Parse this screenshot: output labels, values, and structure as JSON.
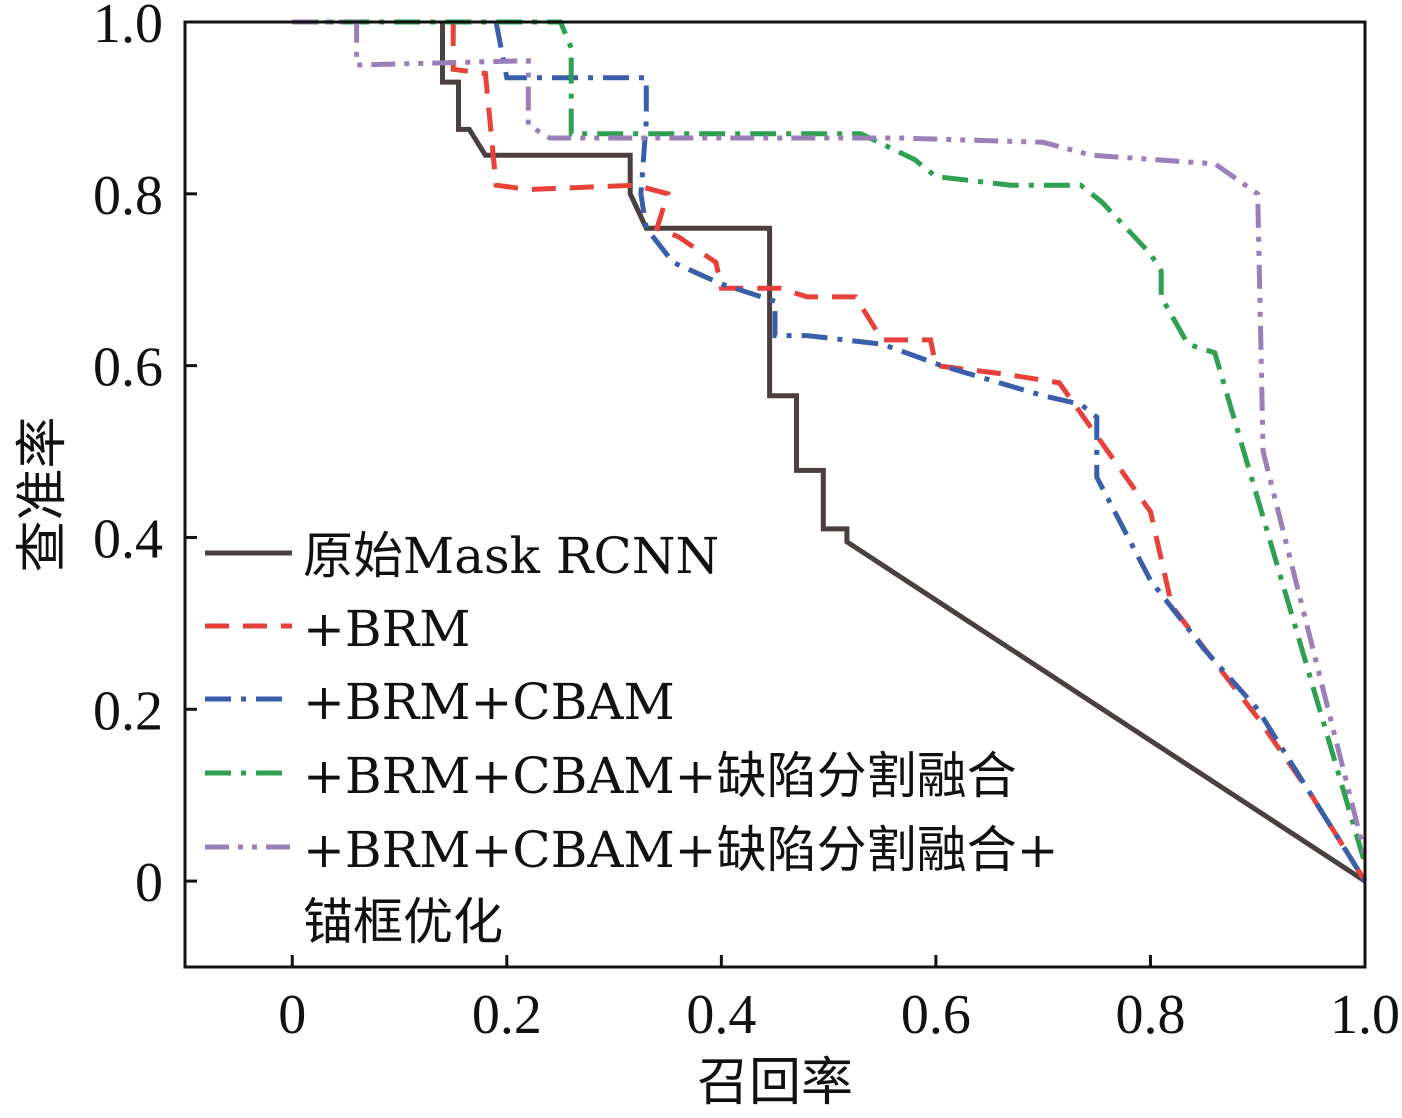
{
  "chart_data": {
    "type": "line",
    "xlabel": "召回率",
    "ylabel": "查准率",
    "xlim": [
      -0.1,
      1.0
    ],
    "ylim": [
      -0.1,
      1.0
    ],
    "xticks": [
      0,
      0.2,
      0.4,
      0.6,
      0.8,
      1.0
    ],
    "yticks": [
      0,
      0.2,
      0.4,
      0.6,
      0.8,
      1.0
    ],
    "xtick_labels": [
      "0",
      "0.2",
      "0.4",
      "0.6",
      "0.8",
      "1.0"
    ],
    "ytick_labels": [
      "0",
      "0.2",
      "0.4",
      "0.6",
      "0.8",
      "1.0"
    ],
    "grid": false,
    "legend_position": "lower-left",
    "series": [
      {
        "name": "原始Mask RCNN",
        "color": "#4a4040",
        "dash": "solid",
        "points": [
          [
            0.14,
            1.0
          ],
          [
            0.14,
            0.93
          ],
          [
            0.155,
            0.93
          ],
          [
            0.155,
            0.875
          ],
          [
            0.165,
            0.875
          ],
          [
            0.18,
            0.845
          ],
          [
            0.315,
            0.845
          ],
          [
            0.315,
            0.8
          ],
          [
            0.33,
            0.76
          ],
          [
            0.445,
            0.76
          ],
          [
            0.445,
            0.565
          ],
          [
            0.47,
            0.565
          ],
          [
            0.47,
            0.478
          ],
          [
            0.495,
            0.478
          ],
          [
            0.495,
            0.41
          ],
          [
            0.517,
            0.41
          ],
          [
            0.517,
            0.395
          ],
          [
            1.0,
            0.0
          ]
        ]
      },
      {
        "name": "+BRM",
        "color": "#e8413c",
        "dash": "dash",
        "points": [
          [
            0.15,
            1.0
          ],
          [
            0.15,
            0.945
          ],
          [
            0.18,
            0.94
          ],
          [
            0.19,
            0.81
          ],
          [
            0.22,
            0.805
          ],
          [
            0.32,
            0.81
          ],
          [
            0.35,
            0.8
          ],
          [
            0.34,
            0.76
          ],
          [
            0.36,
            0.75
          ],
          [
            0.395,
            0.72
          ],
          [
            0.4,
            0.69
          ],
          [
            0.455,
            0.69
          ],
          [
            0.48,
            0.68
          ],
          [
            0.525,
            0.68
          ],
          [
            0.55,
            0.63
          ],
          [
            0.595,
            0.63
          ],
          [
            0.6,
            0.6
          ],
          [
            0.665,
            0.59
          ],
          [
            0.715,
            0.58
          ],
          [
            0.8,
            0.43
          ],
          [
            0.82,
            0.32
          ],
          [
            0.9,
            0.19
          ],
          [
            0.95,
            0.1
          ],
          [
            1.0,
            0.0
          ]
        ]
      },
      {
        "name": "+BRM+CBAM",
        "color": "#3a5faa",
        "dash": "dashdot",
        "points": [
          [
            0.19,
            1.0
          ],
          [
            0.2,
            0.935
          ],
          [
            0.33,
            0.935
          ],
          [
            0.33,
            0.885
          ],
          [
            0.325,
            0.8
          ],
          [
            0.33,
            0.76
          ],
          [
            0.355,
            0.72
          ],
          [
            0.4,
            0.695
          ],
          [
            0.45,
            0.675
          ],
          [
            0.45,
            0.635
          ],
          [
            0.48,
            0.635
          ],
          [
            0.55,
            0.625
          ],
          [
            0.605,
            0.6
          ],
          [
            0.7,
            0.565
          ],
          [
            0.735,
            0.555
          ],
          [
            0.75,
            0.54
          ],
          [
            0.75,
            0.47
          ],
          [
            0.8,
            0.35
          ],
          [
            0.85,
            0.27
          ],
          [
            0.9,
            0.2
          ],
          [
            1.0,
            0.0
          ]
        ]
      },
      {
        "name": "+BRM+CBAM+缺陷分割融合",
        "color": "#2ea050",
        "dash": "dashdot",
        "points": [
          [
            0.0,
            1.0
          ],
          [
            0.25,
            1.0
          ],
          [
            0.26,
            0.97
          ],
          [
            0.26,
            0.87
          ],
          [
            0.32,
            0.87
          ],
          [
            0.53,
            0.87
          ],
          [
            0.58,
            0.84
          ],
          [
            0.6,
            0.82
          ],
          [
            0.67,
            0.81
          ],
          [
            0.735,
            0.81
          ],
          [
            0.755,
            0.79
          ],
          [
            0.8,
            0.73
          ],
          [
            0.81,
            0.71
          ],
          [
            0.81,
            0.68
          ],
          [
            0.835,
            0.625
          ],
          [
            0.86,
            0.615
          ],
          [
            1.0,
            0.02
          ]
        ]
      },
      {
        "name": "+BRM+CBAM+缺陷分割融合+\n锚框优化",
        "color": "#9a7fb8",
        "dash": "dashdotdot",
        "points": [
          [
            0.0,
            1.0
          ],
          [
            0.06,
            1.0
          ],
          [
            0.06,
            0.95
          ],
          [
            0.22,
            0.955
          ],
          [
            0.22,
            0.88
          ],
          [
            0.24,
            0.865
          ],
          [
            0.38,
            0.865
          ],
          [
            0.565,
            0.865
          ],
          [
            0.7,
            0.86
          ],
          [
            0.745,
            0.845
          ],
          [
            0.86,
            0.835
          ],
          [
            0.9,
            0.8
          ],
          [
            0.905,
            0.5
          ],
          [
            1.0,
            0.03
          ]
        ]
      }
    ]
  }
}
